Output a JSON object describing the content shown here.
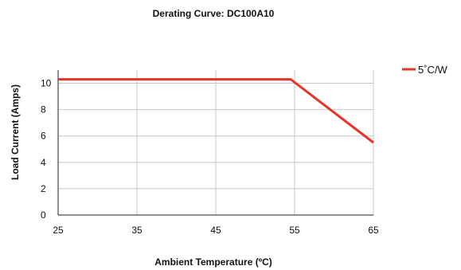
{
  "chart_data": {
    "type": "line",
    "title": "Derating Curve: DC100A10",
    "xlabel": "Ambient Temperature (ºC)",
    "ylabel": "Load Current (Amps)",
    "xlim": [
      25,
      65
    ],
    "ylim": [
      0,
      11
    ],
    "x_ticks": [
      25,
      35,
      45,
      55,
      65
    ],
    "y_ticks": [
      0,
      2,
      4,
      6,
      8,
      10
    ],
    "grid": true,
    "legend_position": "top-right",
    "series": [
      {
        "name": "5˚C/W",
        "color": "#e8322a",
        "points": [
          [
            25,
            10.3
          ],
          [
            54.5,
            10.3
          ],
          [
            65,
            5.5
          ]
        ]
      }
    ]
  }
}
